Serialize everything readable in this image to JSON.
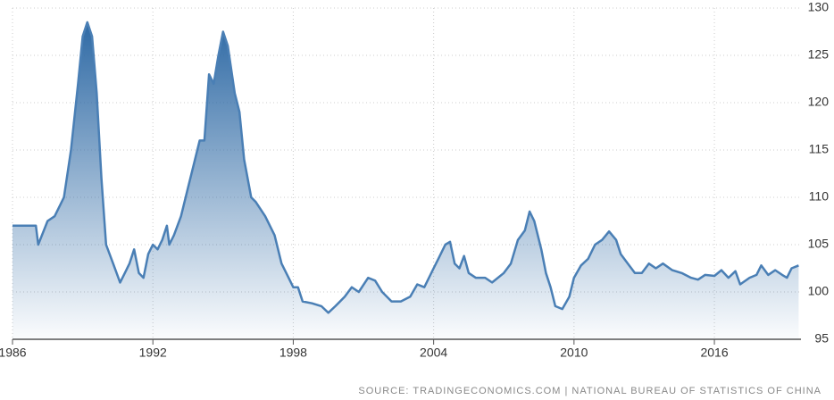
{
  "chart_data": {
    "type": "area",
    "x": [
      1986.0,
      1987.0,
      1987.1,
      1987.5,
      1987.8,
      1988.2,
      1988.5,
      1988.8,
      1989.0,
      1989.2,
      1989.4,
      1989.6,
      1989.8,
      1990.0,
      1990.3,
      1990.6,
      1990.8,
      1991.0,
      1991.2,
      1991.4,
      1991.6,
      1991.8,
      1992.0,
      1992.2,
      1992.4,
      1992.6,
      1992.7,
      1992.9,
      1993.2,
      1993.5,
      1993.8,
      1994.0,
      1994.2,
      1994.4,
      1994.6,
      1994.8,
      1995.0,
      1995.2,
      1995.5,
      1995.7,
      1995.9,
      1996.2,
      1996.4,
      1996.8,
      1997.2,
      1997.5,
      1997.8,
      1998.0,
      1998.2,
      1998.4,
      1998.8,
      1999.2,
      1999.5,
      1999.8,
      2000.2,
      2000.5,
      2000.8,
      2001.2,
      2001.5,
      2001.8,
      2002.2,
      2002.6,
      2003.0,
      2003.3,
      2003.6,
      2004.0,
      2004.2,
      2004.5,
      2004.7,
      2004.9,
      2005.1,
      2005.3,
      2005.5,
      2005.8,
      2006.2,
      2006.5,
      2007.0,
      2007.3,
      2007.6,
      2007.9,
      2008.1,
      2008.3,
      2008.6,
      2008.8,
      2009.0,
      2009.2,
      2009.5,
      2009.8,
      2010.0,
      2010.3,
      2010.6,
      2010.9,
      2011.2,
      2011.5,
      2011.8,
      2012.0,
      2012.3,
      2012.6,
      2012.9,
      2013.2,
      2013.5,
      2013.8,
      2014.2,
      2014.6,
      2015.0,
      2015.3,
      2015.6,
      2016.0,
      2016.3,
      2016.6,
      2016.9,
      2017.1,
      2017.5,
      2017.8,
      2018.0,
      2018.3,
      2018.6,
      2018.9,
      2019.1,
      2019.3,
      2019.6
    ],
    "values": [
      107,
      107,
      105,
      107.5,
      108,
      110,
      115,
      122,
      127,
      128.5,
      127,
      121,
      112,
      105,
      103,
      101,
      102,
      103,
      104.5,
      102,
      101.5,
      104,
      105,
      104.5,
      105.5,
      107,
      105,
      106,
      108,
      111,
      114,
      116,
      116,
      123,
      122,
      125,
      127.5,
      126,
      121,
      119,
      114,
      110,
      109.5,
      108,
      106,
      103,
      101.5,
      100.5,
      100.5,
      99,
      98.8,
      98.5,
      97.8,
      98.5,
      99.5,
      100.5,
      100,
      101.5,
      101.2,
      100,
      99,
      99,
      99.5,
      100.8,
      100.5,
      102.5,
      103.5,
      105,
      105.3,
      103,
      102.5,
      103.8,
      102,
      101.5,
      101.5,
      101,
      102,
      103,
      105.5,
      106.5,
      108.5,
      107.5,
      104.5,
      102,
      100.5,
      98.5,
      98.2,
      99.5,
      101.5,
      102.8,
      103.5,
      105,
      105.5,
      106.4,
      105.5,
      104,
      103,
      102,
      102,
      103,
      102.5,
      103,
      102.3,
      102,
      101.5,
      101.3,
      101.8,
      101.7,
      102.3,
      101.5,
      102.2,
      100.8,
      101.5,
      101.8,
      102.8,
      101.8,
      102.3,
      101.8,
      101.5,
      102.5,
      102.8
    ],
    "color": "#4a7fb5",
    "xlim": [
      1986,
      2019.7
    ],
    "xticks": [
      1986,
      1992,
      1998,
      2004,
      2010,
      2016
    ],
    "ylim": [
      95,
      130
    ],
    "yticks": [
      95,
      100,
      105,
      110,
      115,
      120,
      125,
      130
    ],
    "grid": true,
    "source": "SOURCE: TRADINGECONOMICS.COM | NATIONAL BUREAU OF STATISTICS OF CHINA"
  }
}
